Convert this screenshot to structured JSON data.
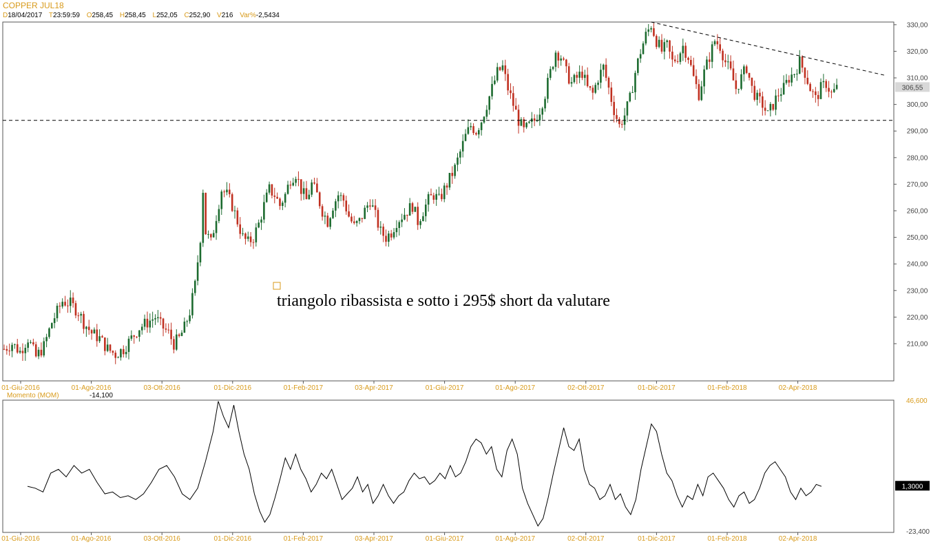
{
  "header": {
    "title": "COPPER JUL18",
    "stats": [
      {
        "key": "D",
        "value": "18/04/2017"
      },
      {
        "key": "T",
        "value": "23:59:59"
      },
      {
        "key": "O",
        "value": "258,45"
      },
      {
        "key": "H",
        "value": "258,45"
      },
      {
        "key": "L",
        "value": "252,05"
      },
      {
        "key": "C",
        "value": "252,90"
      },
      {
        "key": "V",
        "value": "216"
      },
      {
        "key": "Var%",
        "value": "-2,5434"
      }
    ]
  },
  "chart_data": [
    {
      "type": "candlestick",
      "title": "COPPER JUL18",
      "ylim": [
        196,
        331
      ],
      "y_ticks": [
        "210,00",
        "220,00",
        "230,00",
        "240,00",
        "250,00",
        "260,00",
        "270,00",
        "280,00",
        "290,00",
        "300,00",
        "310,00",
        "320,00",
        "330,00"
      ],
      "x_labels": [
        "01-Giu-2016",
        "01-Ago-2016",
        "03-Ott-2016",
        "01-Dic-2016",
        "01-Feb-2017",
        "03-Apr-2017",
        "01-Giu-2017",
        "01-Ago-2017",
        "02-Ott-2017",
        "01-Dic-2017",
        "01-Feb-2018",
        "02-Apr-2018"
      ],
      "last_price": "306,55",
      "last_value": 306.55,
      "support_level": 294,
      "resistance_line": {
        "start": {
          "date": "15-Gen-2018",
          "value": 331
        },
        "end": {
          "date": "25-Mag-2018",
          "value": 311
        }
      },
      "annotation": "triangolo ribassista e sotto i 295$ short da valutare",
      "price_path": [
        [
          0,
          208
        ],
        [
          3,
          210
        ],
        [
          6,
          207
        ],
        [
          9,
          212
        ],
        [
          12,
          205
        ],
        [
          15,
          209
        ],
        [
          18,
          218
        ],
        [
          20,
          222
        ],
        [
          22,
          226
        ],
        [
          25,
          225
        ],
        [
          28,
          222
        ],
        [
          30,
          218
        ],
        [
          33,
          214
        ],
        [
          36,
          212
        ],
        [
          39,
          208
        ],
        [
          42,
          206
        ],
        [
          45,
          208
        ],
        [
          48,
          212
        ],
        [
          51,
          216
        ],
        [
          54,
          218
        ],
        [
          57,
          220
        ],
        [
          59,
          217
        ],
        [
          62,
          214
        ],
        [
          64,
          210
        ],
        [
          66,
          212
        ],
        [
          68,
          216
        ],
        [
          70,
          222
        ],
        [
          72,
          232
        ],
        [
          74,
          250
        ],
        [
          75,
          268
        ],
        [
          76,
          252
        ],
        [
          78,
          248
        ],
        [
          80,
          258
        ],
        [
          82,
          268
        ],
        [
          84,
          266
        ],
        [
          86,
          262
        ],
        [
          88,
          256
        ],
        [
          90,
          250
        ],
        [
          92,
          248
        ],
        [
          94,
          250
        ],
        [
          96,
          255
        ],
        [
          98,
          262
        ],
        [
          100,
          268
        ],
        [
          102,
          266
        ],
        [
          104,
          262
        ],
        [
          106,
          266
        ],
        [
          108,
          272
        ],
        [
          110,
          274
        ],
        [
          112,
          268
        ],
        [
          114,
          264
        ],
        [
          116,
          270
        ],
        [
          118,
          266
        ],
        [
          120,
          260
        ],
        [
          122,
          256
        ],
        [
          124,
          262
        ],
        [
          126,
          266
        ],
        [
          128,
          264
        ],
        [
          130,
          258
        ],
        [
          132,
          254
        ],
        [
          134,
          256
        ],
        [
          136,
          260
        ],
        [
          138,
          264
        ],
        [
          140,
          258
        ],
        [
          142,
          252
        ],
        [
          144,
          250
        ],
        [
          146,
          252
        ],
        [
          148,
          256
        ],
        [
          150,
          258
        ],
        [
          152,
          260
        ],
        [
          154,
          262
        ],
        [
          156,
          256
        ],
        [
          158,
          260
        ],
        [
          160,
          264
        ],
        [
          162,
          266
        ],
        [
          164,
          264
        ],
        [
          166,
          268
        ],
        [
          168,
          272
        ],
        [
          170,
          276
        ],
        [
          172,
          282
        ],
        [
          174,
          288
        ],
        [
          176,
          292
        ],
        [
          178,
          290
        ],
        [
          180,
          294
        ],
        [
          182,
          300
        ],
        [
          184,
          306
        ],
        [
          186,
          312
        ],
        [
          188,
          314
        ],
        [
          190,
          306
        ],
        [
          192,
          300
        ],
        [
          194,
          294
        ],
        [
          196,
          290
        ],
        [
          198,
          292
        ],
        [
          200,
          294
        ],
        [
          202,
          298
        ],
        [
          204,
          304
        ],
        [
          206,
          312
        ],
        [
          208,
          320
        ],
        [
          210,
          318
        ],
        [
          212,
          312
        ],
        [
          214,
          308
        ],
        [
          216,
          310
        ],
        [
          218,
          312
        ],
        [
          220,
          306
        ],
        [
          222,
          304
        ],
        [
          224,
          310
        ],
        [
          226,
          314
        ],
        [
          228,
          306
        ],
        [
          230,
          298
        ],
        [
          232,
          292
        ],
        [
          234,
          296
        ],
        [
          236,
          302
        ],
        [
          238,
          312
        ],
        [
          240,
          320
        ],
        [
          242,
          326
        ],
        [
          244,
          330
        ],
        [
          246,
          324
        ],
        [
          248,
          320
        ],
        [
          250,
          322
        ],
        [
          252,
          316
        ],
        [
          254,
          318
        ],
        [
          256,
          322
        ],
        [
          258,
          318
        ],
        [
          260,
          310
        ],
        [
          262,
          304
        ],
        [
          264,
          312
        ],
        [
          266,
          318
        ],
        [
          268,
          324
        ],
        [
          270,
          322
        ],
        [
          272,
          316
        ],
        [
          274,
          312
        ],
        [
          276,
          306
        ],
        [
          278,
          310
        ],
        [
          280,
          314
        ],
        [
          282,
          306
        ],
        [
          284,
          302
        ],
        [
          286,
          300
        ],
        [
          288,
          296
        ],
        [
          290,
          300
        ],
        [
          292,
          304
        ],
        [
          294,
          306
        ],
        [
          296,
          310
        ],
        [
          298,
          312
        ],
        [
          300,
          316
        ],
        [
          302,
          312
        ],
        [
          304,
          306
        ],
        [
          306,
          302
        ],
        [
          308,
          306
        ],
        [
          310,
          308
        ],
        [
          312,
          304
        ],
        [
          314,
          306
        ]
      ]
    },
    {
      "type": "line",
      "title": "Momento (MOM)",
      "current_value": "-14,100",
      "ylim": [
        -23.4,
        46.6
      ],
      "y_ticks": [
        "46,600",
        "-23,400"
      ],
      "last_value": "1,3000",
      "x_labels": [
        "01-Giu-2016",
        "01-Ago-2016",
        "03-Ott-2016",
        "01-Dic-2016",
        "01-Feb-2017",
        "03-Apr-2017",
        "01-Giu-2017",
        "01-Ago-2017",
        "02-Ott-2017",
        "01-Dic-2017",
        "01-Feb-2018",
        "02-Apr-2018"
      ],
      "values": [
        [
          0,
          1
        ],
        [
          3,
          0
        ],
        [
          6,
          -2
        ],
        [
          9,
          8
        ],
        [
          12,
          10
        ],
        [
          15,
          6
        ],
        [
          18,
          12
        ],
        [
          21,
          8
        ],
        [
          24,
          10
        ],
        [
          27,
          3
        ],
        [
          30,
          -3
        ],
        [
          33,
          -2
        ],
        [
          36,
          -5
        ],
        [
          39,
          -4
        ],
        [
          42,
          -6
        ],
        [
          45,
          -3
        ],
        [
          48,
          3
        ],
        [
          51,
          10
        ],
        [
          54,
          12
        ],
        [
          57,
          6
        ],
        [
          60,
          -3
        ],
        [
          63,
          -6
        ],
        [
          66,
          0
        ],
        [
          69,
          14
        ],
        [
          72,
          30
        ],
        [
          74,
          46
        ],
        [
          76,
          38
        ],
        [
          78,
          32
        ],
        [
          80,
          44
        ],
        [
          82,
          30
        ],
        [
          84,
          18
        ],
        [
          86,
          10
        ],
        [
          88,
          -3
        ],
        [
          90,
          -12
        ],
        [
          92,
          -18
        ],
        [
          94,
          -14
        ],
        [
          96,
          -5
        ],
        [
          98,
          5
        ],
        [
          100,
          16
        ],
        [
          102,
          10
        ],
        [
          104,
          18
        ],
        [
          106,
          10
        ],
        [
          108,
          5
        ],
        [
          110,
          -2
        ],
        [
          112,
          2
        ],
        [
          114,
          8
        ],
        [
          116,
          5
        ],
        [
          118,
          10
        ],
        [
          120,
          2
        ],
        [
          122,
          -6
        ],
        [
          124,
          -3
        ],
        [
          126,
          0
        ],
        [
          128,
          6
        ],
        [
          130,
          -2
        ],
        [
          132,
          2
        ],
        [
          134,
          -8
        ],
        [
          136,
          -4
        ],
        [
          138,
          2
        ],
        [
          140,
          -4
        ],
        [
          142,
          -8
        ],
        [
          144,
          -4
        ],
        [
          146,
          -2
        ],
        [
          148,
          4
        ],
        [
          150,
          8
        ],
        [
          152,
          5
        ],
        [
          154,
          6
        ],
        [
          156,
          2
        ],
        [
          158,
          4
        ],
        [
          160,
          8
        ],
        [
          162,
          5
        ],
        [
          164,
          12
        ],
        [
          166,
          6
        ],
        [
          168,
          8
        ],
        [
          170,
          14
        ],
        [
          172,
          22
        ],
        [
          174,
          26
        ],
        [
          176,
          24
        ],
        [
          178,
          18
        ],
        [
          180,
          22
        ],
        [
          182,
          10
        ],
        [
          184,
          6
        ],
        [
          186,
          20
        ],
        [
          188,
          26
        ],
        [
          190,
          18
        ],
        [
          192,
          0
        ],
        [
          194,
          -8
        ],
        [
          196,
          -14
        ],
        [
          198,
          -20
        ],
        [
          200,
          -16
        ],
        [
          202,
          -5
        ],
        [
          204,
          8
        ],
        [
          206,
          20
        ],
        [
          208,
          32
        ],
        [
          210,
          22
        ],
        [
          212,
          20
        ],
        [
          214,
          26
        ],
        [
          216,
          10
        ],
        [
          218,
          2
        ],
        [
          220,
          0
        ],
        [
          222,
          -6
        ],
        [
          224,
          -4
        ],
        [
          226,
          2
        ],
        [
          228,
          -6
        ],
        [
          230,
          -3
        ],
        [
          232,
          -10
        ],
        [
          234,
          -14
        ],
        [
          236,
          -6
        ],
        [
          238,
          10
        ],
        [
          240,
          22
        ],
        [
          242,
          34
        ],
        [
          244,
          30
        ],
        [
          246,
          18
        ],
        [
          248,
          8
        ],
        [
          250,
          4
        ],
        [
          252,
          -4
        ],
        [
          254,
          -10
        ],
        [
          256,
          -4
        ],
        [
          258,
          -6
        ],
        [
          260,
          2
        ],
        [
          262,
          -4
        ],
        [
          264,
          6
        ],
        [
          266,
          8
        ],
        [
          268,
          4
        ],
        [
          270,
          0
        ],
        [
          272,
          -6
        ],
        [
          274,
          -10
        ],
        [
          276,
          -4
        ],
        [
          278,
          -2
        ],
        [
          280,
          -8
        ],
        [
          282,
          -6
        ],
        [
          284,
          0
        ],
        [
          286,
          8
        ],
        [
          288,
          12
        ],
        [
          290,
          14
        ],
        [
          292,
          10
        ],
        [
          294,
          6
        ],
        [
          296,
          -2
        ],
        [
          298,
          -6
        ],
        [
          300,
          0
        ],
        [
          302,
          -4
        ],
        [
          304,
          -2
        ],
        [
          306,
          2
        ],
        [
          308,
          1
        ]
      ]
    }
  ],
  "colors": {
    "up": "#1c6b2f",
    "down": "#c03020",
    "accent": "#d89a1a"
  }
}
